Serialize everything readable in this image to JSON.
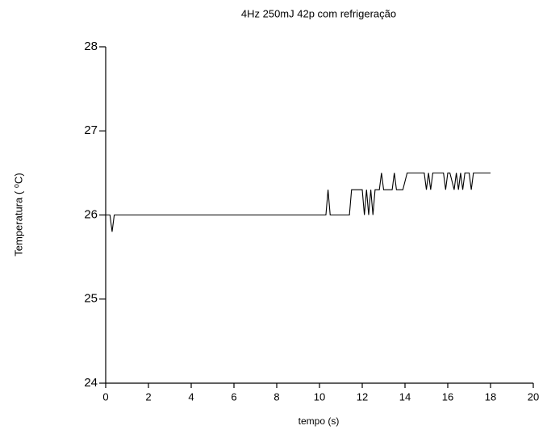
{
  "chart_data": {
    "type": "line",
    "title": "4Hz 250mJ 42p com refrigeração",
    "x_label": "tempo (s)",
    "y_label": "Temperatura ( ⁰C)",
    "xlim": [
      0,
      20
    ],
    "xticks": [
      0,
      2,
      4,
      6,
      8,
      10,
      12,
      14,
      16,
      18,
      20
    ],
    "ylim": [
      24,
      28
    ],
    "yticks": [
      24,
      25,
      26,
      27,
      28
    ],
    "grid": false,
    "series": [
      {
        "color": "#000000",
        "x": [
          0,
          0.2,
          0.3,
          0.4,
          10.3,
          10.4,
          10.5,
          11.4,
          11.5,
          12.0,
          12.1,
          12.2,
          12.3,
          12.4,
          12.5,
          12.6,
          12.8,
          12.9,
          13.0,
          13.4,
          13.5,
          13.6,
          13.9,
          14.1,
          14.9,
          15.0,
          15.1,
          15.2,
          15.3,
          15.8,
          15.9,
          16.0,
          16.1,
          16.3,
          16.4,
          16.5,
          16.6,
          16.7,
          16.8,
          17.0,
          17.1,
          17.2,
          18.0
        ],
        "values": [
          26,
          26,
          25.8,
          26,
          26,
          26.3,
          26,
          26,
          26.3,
          26.3,
          26,
          26.3,
          26,
          26.3,
          26,
          26.3,
          26.3,
          26.5,
          26.3,
          26.3,
          26.5,
          26.3,
          26.3,
          26.5,
          26.5,
          26.3,
          26.5,
          26.3,
          26.5,
          26.5,
          26.3,
          26.5,
          26.5,
          26.3,
          26.5,
          26.3,
          26.5,
          26.3,
          26.5,
          26.5,
          26.3,
          26.5,
          26.5
        ]
      }
    ]
  }
}
